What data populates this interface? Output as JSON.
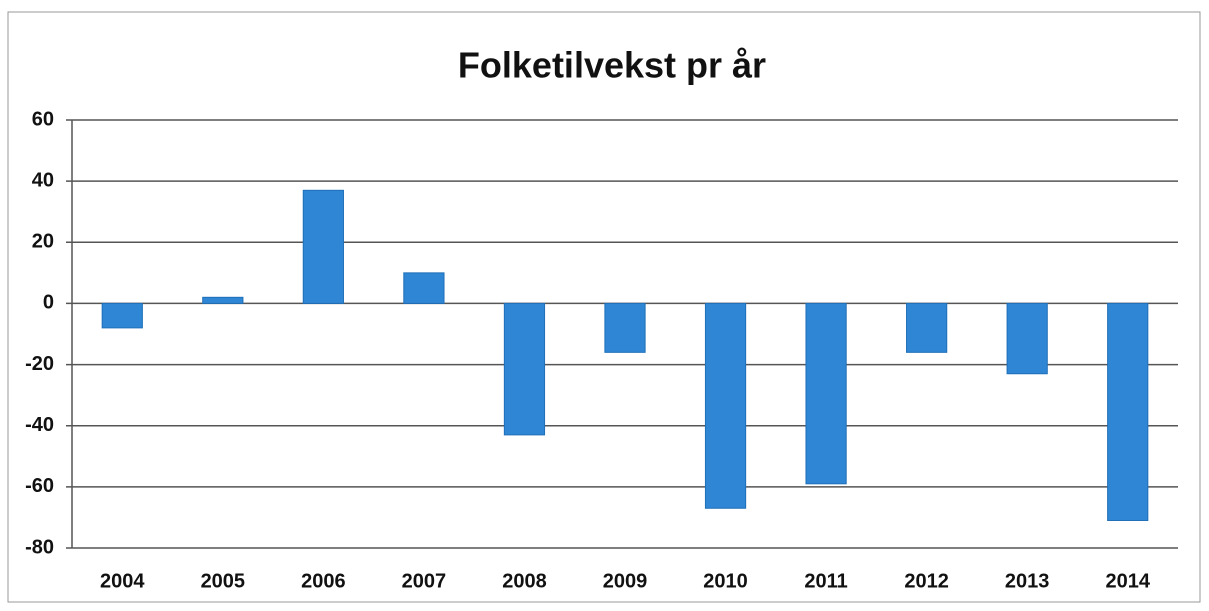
{
  "chart_data": {
    "type": "bar",
    "title": "Folketilvekst pr år",
    "categories": [
      "2004",
      "2005",
      "2006",
      "2007",
      "2008",
      "2009",
      "2010",
      "2011",
      "2012",
      "2013",
      "2014"
    ],
    "values": [
      -8,
      2,
      37,
      10,
      -43,
      -16,
      -67,
      -59,
      -16,
      -23,
      -71
    ],
    "color": "#2f86d4",
    "ylim": [
      -80,
      60
    ],
    "yticks": [
      -80,
      -60,
      -40,
      -20,
      0,
      20,
      40,
      60
    ],
    "grid": true
  }
}
